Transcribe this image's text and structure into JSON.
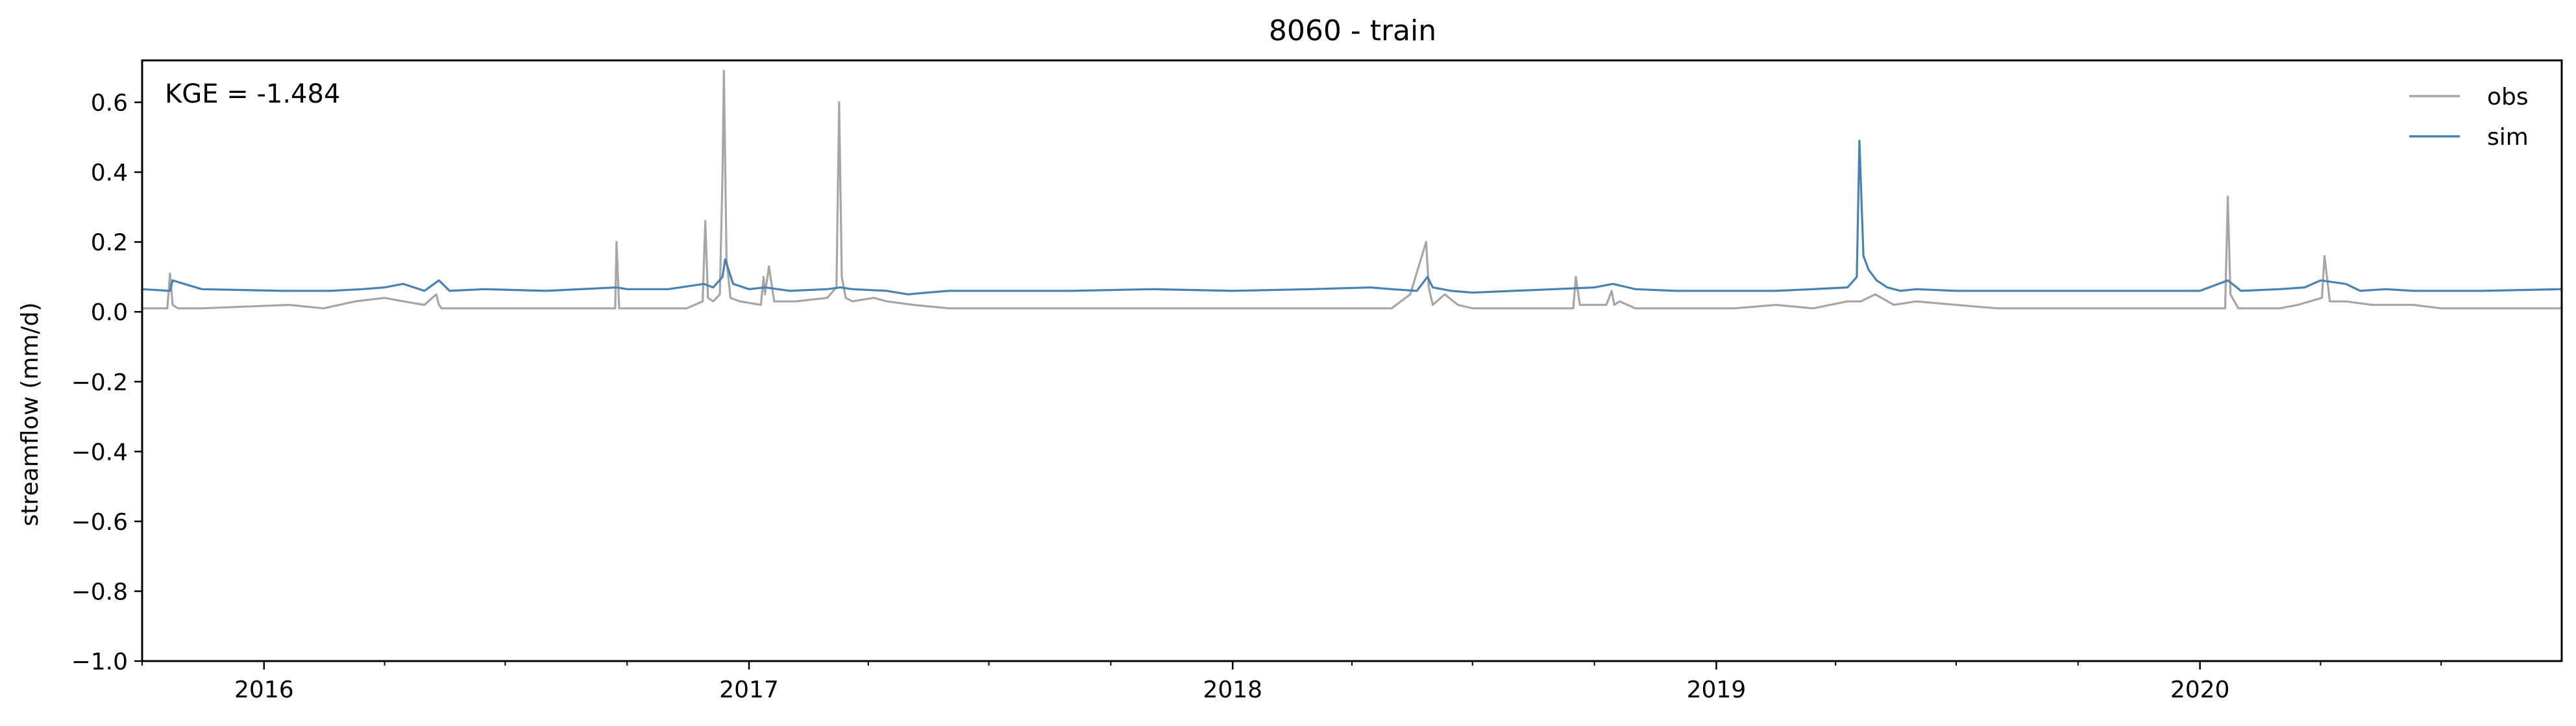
{
  "chart_data": {
    "type": "line",
    "title": "8060 - train",
    "xlabel": "",
    "ylabel": "streamflow (mm/d)",
    "annotation": "KGE = -1.484",
    "x_type": "date",
    "xlim": [
      "2015-10-01",
      "2020-09-30"
    ],
    "ylim": [
      -1.0,
      0.72
    ],
    "y_ticks": [
      -1.0,
      -0.8,
      -0.6,
      -0.4,
      -0.2,
      0.0,
      0.2,
      0.4,
      0.6
    ],
    "y_tick_labels": [
      "−1.0",
      "−0.8",
      "−0.6",
      "−0.4",
      "−0.2",
      "0.0",
      "0.2",
      "0.4",
      "0.6"
    ],
    "x_major_ticks": [
      "2016-01-01",
      "2017-01-01",
      "2018-01-01",
      "2019-01-01",
      "2020-01-01"
    ],
    "x_tick_labels": [
      "2016",
      "2017",
      "2018",
      "2019",
      "2020"
    ],
    "grid": false,
    "legend": "top-right",
    "series": [
      {
        "name": "obs",
        "color": "#a6a6a6",
        "x": [
          "2015-10-01",
          "2015-10-20",
          "2015-10-22",
          "2015-10-24",
          "2015-10-28",
          "2015-11-15",
          "2016-01-20",
          "2016-02-15",
          "2016-03-10",
          "2016-04-01",
          "2016-04-15",
          "2016-05-01",
          "2016-05-10",
          "2016-05-12",
          "2016-05-14",
          "2016-05-20",
          "2016-06-20",
          "2016-08-10",
          "2016-09-22",
          "2016-09-23",
          "2016-09-25",
          "2016-10-01",
          "2016-10-15",
          "2016-11-15",
          "2016-11-27",
          "2016-11-29",
          "2016-12-01",
          "2016-12-05",
          "2016-12-10",
          "2016-12-12",
          "2016-12-13",
          "2016-12-15",
          "2016-12-18",
          "2016-12-25",
          "2017-01-10",
          "2017-01-12",
          "2017-01-13",
          "2017-01-16",
          "2017-01-20",
          "2017-02-05",
          "2017-03-01",
          "2017-03-08",
          "2017-03-10",
          "2017-03-12",
          "2017-03-15",
          "2017-03-20",
          "2017-04-05",
          "2017-04-15",
          "2017-05-05",
          "2017-06-01",
          "2017-07-01",
          "2017-09-01",
          "2017-11-01",
          "2018-01-01",
          "2018-03-01",
          "2018-05-01",
          "2018-05-15",
          "2018-05-27",
          "2018-05-29",
          "2018-06-01",
          "2018-06-10",
          "2018-06-20",
          "2018-07-01",
          "2018-08-01",
          "2018-09-01",
          "2018-09-15",
          "2018-09-17",
          "2018-09-20",
          "2018-10-10",
          "2018-10-14",
          "2018-10-16",
          "2018-10-20",
          "2018-11-01",
          "2018-12-01",
          "2019-01-15",
          "2019-02-15",
          "2019-03-15",
          "2019-04-10",
          "2019-04-20",
          "2019-05-01",
          "2019-05-15",
          "2019-06-01",
          "2019-07-01",
          "2019-08-01",
          "2019-10-01",
          "2019-12-01",
          "2020-01-15",
          "2020-01-20",
          "2020-01-22",
          "2020-01-24",
          "2020-01-30",
          "2020-03-01",
          "2020-03-15",
          "2020-04-02",
          "2020-04-04",
          "2020-04-08",
          "2020-04-20",
          "2020-05-10",
          "2020-06-10",
          "2020-07-01",
          "2020-08-01",
          "2020-09-30"
        ],
        "y": [
          0.01,
          0.01,
          0.11,
          0.02,
          0.01,
          0.01,
          0.02,
          0.01,
          0.03,
          0.04,
          0.03,
          0.02,
          0.05,
          0.02,
          0.01,
          0.01,
          0.01,
          0.01,
          0.01,
          0.2,
          0.01,
          0.01,
          0.01,
          0.01,
          0.03,
          0.26,
          0.04,
          0.03,
          0.05,
          0.39,
          0.69,
          0.15,
          0.04,
          0.03,
          0.02,
          0.1,
          0.05,
          0.13,
          0.03,
          0.03,
          0.04,
          0.07,
          0.6,
          0.1,
          0.04,
          0.03,
          0.04,
          0.03,
          0.02,
          0.01,
          0.01,
          0.01,
          0.01,
          0.01,
          0.01,
          0.01,
          0.05,
          0.2,
          0.07,
          0.02,
          0.05,
          0.02,
          0.01,
          0.01,
          0.01,
          0.01,
          0.1,
          0.02,
          0.02,
          0.06,
          0.02,
          0.03,
          0.01,
          0.01,
          0.01,
          0.02,
          0.01,
          0.03,
          0.03,
          0.05,
          0.02,
          0.03,
          0.02,
          0.01,
          0.01,
          0.01,
          0.01,
          0.01,
          0.33,
          0.05,
          0.01,
          0.01,
          0.02,
          0.04,
          0.16,
          0.03,
          0.03,
          0.02,
          0.02,
          0.01,
          0.01,
          0.01
        ]
      },
      {
        "name": "sim",
        "color": "#4682b4",
        "x": [
          "2015-10-01",
          "2015-10-22",
          "2015-10-24",
          "2015-11-15",
          "2016-01-15",
          "2016-02-20",
          "2016-03-15",
          "2016-04-01",
          "2016-04-15",
          "2016-05-01",
          "2016-05-12",
          "2016-05-20",
          "2016-06-15",
          "2016-08-01",
          "2016-09-23",
          "2016-10-01",
          "2016-11-01",
          "2016-11-28",
          "2016-12-05",
          "2016-12-12",
          "2016-12-14",
          "2016-12-20",
          "2017-01-01",
          "2017-01-13",
          "2017-02-01",
          "2017-03-01",
          "2017-03-11",
          "2017-03-20",
          "2017-04-15",
          "2017-05-01",
          "2017-05-15",
          "2017-06-01",
          "2017-07-15",
          "2017-09-01",
          "2017-11-01",
          "2018-01-01",
          "2018-03-01",
          "2018-04-15",
          "2018-05-01",
          "2018-05-20",
          "2018-05-28",
          "2018-06-01",
          "2018-06-15",
          "2018-07-01",
          "2018-08-01",
          "2018-09-01",
          "2018-10-01",
          "2018-10-15",
          "2018-11-01",
          "2018-12-01",
          "2019-01-15",
          "2019-02-15",
          "2019-03-15",
          "2019-04-10",
          "2019-04-17",
          "2019-04-19",
          "2019-04-22",
          "2019-04-26",
          "2019-05-02",
          "2019-05-10",
          "2019-05-20",
          "2019-06-01",
          "2019-07-01",
          "2019-08-01",
          "2019-09-01",
          "2019-11-01",
          "2020-01-01",
          "2020-01-22",
          "2020-02-01",
          "2020-03-01",
          "2020-03-20",
          "2020-04-01",
          "2020-04-20",
          "2020-05-01",
          "2020-05-20",
          "2020-06-10",
          "2020-07-01",
          "2020-08-01",
          "2020-09-30"
        ],
        "y": [
          0.065,
          0.06,
          0.09,
          0.065,
          0.06,
          0.06,
          0.065,
          0.07,
          0.08,
          0.06,
          0.09,
          0.06,
          0.065,
          0.06,
          0.07,
          0.065,
          0.065,
          0.08,
          0.07,
          0.1,
          0.15,
          0.08,
          0.065,
          0.07,
          0.06,
          0.065,
          0.07,
          0.065,
          0.06,
          0.05,
          0.055,
          0.06,
          0.06,
          0.06,
          0.065,
          0.06,
          0.065,
          0.07,
          0.065,
          0.06,
          0.1,
          0.07,
          0.06,
          0.055,
          0.06,
          0.065,
          0.07,
          0.08,
          0.065,
          0.06,
          0.06,
          0.06,
          0.065,
          0.07,
          0.1,
          0.49,
          0.16,
          0.12,
          0.09,
          0.07,
          0.06,
          0.065,
          0.06,
          0.06,
          0.06,
          0.06,
          0.06,
          0.09,
          0.06,
          0.065,
          0.07,
          0.09,
          0.08,
          0.06,
          0.065,
          0.06,
          0.06,
          0.06,
          0.065
        ]
      }
    ]
  }
}
